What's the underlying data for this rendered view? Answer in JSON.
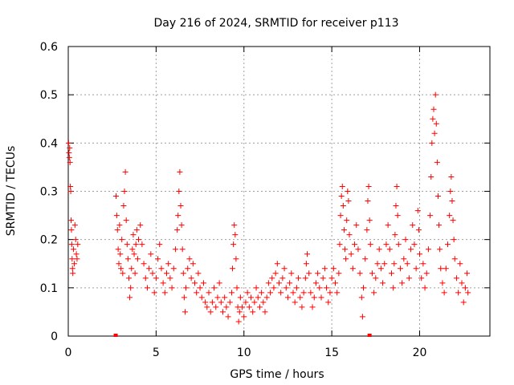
{
  "chart_data": {
    "type": "scatter",
    "title": "Day 216 of 2024, SRMTID for receiver p113",
    "xlabel": "GPS time / hours",
    "ylabel": "SRMTID / TECUs",
    "xlim": [
      0,
      24
    ],
    "ylim": [
      0,
      0.6
    ],
    "x_ticks": [
      0,
      5,
      10,
      15,
      20
    ],
    "y_ticks": [
      0,
      0.1,
      0.2,
      0.3,
      0.4,
      0.5,
      0.6
    ],
    "grid": true,
    "marker": "+",
    "series": [
      {
        "name": "SRMTID",
        "color": "#ff0000",
        "points": [
          [
            0.02,
            0.4
          ],
          [
            0.04,
            0.38
          ],
          [
            0.06,
            0.37
          ],
          [
            0.08,
            0.39
          ],
          [
            0.1,
            0.36
          ],
          [
            0.12,
            0.31
          ],
          [
            0.14,
            0.3
          ],
          [
            0.16,
            0.24
          ],
          [
            0.18,
            0.22
          ],
          [
            0.2,
            0.19
          ],
          [
            0.22,
            0.16
          ],
          [
            0.24,
            0.14
          ],
          [
            0.26,
            0.13
          ],
          [
            0.3,
            0.18
          ],
          [
            0.34,
            0.15
          ],
          [
            0.38,
            0.23
          ],
          [
            0.42,
            0.2
          ],
          [
            0.46,
            0.17
          ],
          [
            0.5,
            0.16
          ],
          [
            0.54,
            0.19
          ],
          [
            2.72,
            0.29
          ],
          [
            2.76,
            0.25
          ],
          [
            2.8,
            0.22
          ],
          [
            2.84,
            0.18
          ],
          [
            2.88,
            0.15
          ],
          [
            2.92,
            0.23
          ],
          [
            2.96,
            0.17
          ],
          [
            3.0,
            0.14
          ],
          [
            3.05,
            0.2
          ],
          [
            3.1,
            0.13
          ],
          [
            3.15,
            0.27
          ],
          [
            3.2,
            0.3
          ],
          [
            3.25,
            0.34
          ],
          [
            3.3,
            0.24
          ],
          [
            3.35,
            0.19
          ],
          [
            3.4,
            0.16
          ],
          [
            3.45,
            0.12
          ],
          [
            3.5,
            0.08
          ],
          [
            3.55,
            0.1
          ],
          [
            3.6,
            0.14
          ],
          [
            3.65,
            0.18
          ],
          [
            3.7,
            0.21
          ],
          [
            3.75,
            0.17
          ],
          [
            3.8,
            0.13
          ],
          [
            3.85,
            0.19
          ],
          [
            3.9,
            0.22
          ],
          [
            3.95,
            0.16
          ],
          [
            4.0,
            0.2
          ],
          [
            4.1,
            0.23
          ],
          [
            4.2,
            0.19
          ],
          [
            4.3,
            0.15
          ],
          [
            4.4,
            0.12
          ],
          [
            4.5,
            0.1
          ],
          [
            4.6,
            0.14
          ],
          [
            4.7,
            0.17
          ],
          [
            4.8,
            0.13
          ],
          [
            4.9,
            0.09
          ],
          [
            5.0,
            0.12
          ],
          [
            5.1,
            0.16
          ],
          [
            5.2,
            0.19
          ],
          [
            5.3,
            0.14
          ],
          [
            5.4,
            0.11
          ],
          [
            5.5,
            0.09
          ],
          [
            5.6,
            0.13
          ],
          [
            5.7,
            0.15
          ],
          [
            5.8,
            0.12
          ],
          [
            5.9,
            0.1
          ],
          [
            6.0,
            0.14
          ],
          [
            6.1,
            0.18
          ],
          [
            6.2,
            0.22
          ],
          [
            6.25,
            0.25
          ],
          [
            6.3,
            0.3
          ],
          [
            6.35,
            0.34
          ],
          [
            6.4,
            0.27
          ],
          [
            6.45,
            0.23
          ],
          [
            6.5,
            0.18
          ],
          [
            6.55,
            0.13
          ],
          [
            6.6,
            0.08
          ],
          [
            6.65,
            0.05
          ],
          [
            6.7,
            0.1
          ],
          [
            6.8,
            0.14
          ],
          [
            6.9,
            0.16
          ],
          [
            7.0,
            0.12
          ],
          [
            7.1,
            0.15
          ],
          [
            7.2,
            0.11
          ],
          [
            7.3,
            0.09
          ],
          [
            7.4,
            0.13
          ],
          [
            7.5,
            0.1
          ],
          [
            7.6,
            0.08
          ],
          [
            7.7,
            0.11
          ],
          [
            7.8,
            0.07
          ],
          [
            7.9,
            0.06
          ],
          [
            8.0,
            0.09
          ],
          [
            8.1,
            0.05
          ],
          [
            8.2,
            0.07
          ],
          [
            8.3,
            0.1
          ],
          [
            8.4,
            0.06
          ],
          [
            8.5,
            0.08
          ],
          [
            8.6,
            0.11
          ],
          [
            8.7,
            0.07
          ],
          [
            8.8,
            0.05
          ],
          [
            8.9,
            0.08
          ],
          [
            9.0,
            0.06
          ],
          [
            9.1,
            0.04
          ],
          [
            9.2,
            0.07
          ],
          [
            9.3,
            0.09
          ],
          [
            9.35,
            0.14
          ],
          [
            9.4,
            0.19
          ],
          [
            9.45,
            0.23
          ],
          [
            9.5,
            0.21
          ],
          [
            9.55,
            0.16
          ],
          [
            9.6,
            0.1
          ],
          [
            9.65,
            0.06
          ],
          [
            9.7,
            0.03
          ],
          [
            9.75,
            0.05
          ],
          [
            9.8,
            0.08
          ],
          [
            9.9,
            0.06
          ],
          [
            10.0,
            0.04
          ],
          [
            10.1,
            0.07
          ],
          [
            10.2,
            0.09
          ],
          [
            10.3,
            0.06
          ],
          [
            10.4,
            0.08
          ],
          [
            10.5,
            0.05
          ],
          [
            10.6,
            0.07
          ],
          [
            10.7,
            0.1
          ],
          [
            10.8,
            0.08
          ],
          [
            10.9,
            0.06
          ],
          [
            11.0,
            0.09
          ],
          [
            11.1,
            0.07
          ],
          [
            11.2,
            0.05
          ],
          [
            11.3,
            0.08
          ],
          [
            11.4,
            0.11
          ],
          [
            11.5,
            0.09
          ],
          [
            11.6,
            0.12
          ],
          [
            11.7,
            0.1
          ],
          [
            11.8,
            0.13
          ],
          [
            11.9,
            0.15
          ],
          [
            12.0,
            0.11
          ],
          [
            12.1,
            0.09
          ],
          [
            12.2,
            0.12
          ],
          [
            12.3,
            0.14
          ],
          [
            12.4,
            0.1
          ],
          [
            12.5,
            0.08
          ],
          [
            12.6,
            0.11
          ],
          [
            12.7,
            0.13
          ],
          [
            12.8,
            0.09
          ],
          [
            12.9,
            0.07
          ],
          [
            13.0,
            0.1
          ],
          [
            13.1,
            0.12
          ],
          [
            13.2,
            0.08
          ],
          [
            13.3,
            0.06
          ],
          [
            13.4,
            0.09
          ],
          [
            13.5,
            0.12
          ],
          [
            13.55,
            0.15
          ],
          [
            13.6,
            0.17
          ],
          [
            13.7,
            0.13
          ],
          [
            13.8,
            0.09
          ],
          [
            13.9,
            0.06
          ],
          [
            14.0,
            0.08
          ],
          [
            14.1,
            0.11
          ],
          [
            14.2,
            0.13
          ],
          [
            14.3,
            0.1
          ],
          [
            14.4,
            0.08
          ],
          [
            14.5,
            0.12
          ],
          [
            14.6,
            0.14
          ],
          [
            14.7,
            0.1
          ],
          [
            14.8,
            0.07
          ],
          [
            14.9,
            0.09
          ],
          [
            15.0,
            0.12
          ],
          [
            15.1,
            0.14
          ],
          [
            15.2,
            0.11
          ],
          [
            15.3,
            0.09
          ],
          [
            15.4,
            0.13
          ],
          [
            15.45,
            0.19
          ],
          [
            15.5,
            0.25
          ],
          [
            15.55,
            0.29
          ],
          [
            15.6,
            0.31
          ],
          [
            15.65,
            0.27
          ],
          [
            15.7,
            0.22
          ],
          [
            15.75,
            0.18
          ],
          [
            15.8,
            0.16
          ],
          [
            15.85,
            0.24
          ],
          [
            15.9,
            0.3
          ],
          [
            15.95,
            0.28
          ],
          [
            16.0,
            0.21
          ],
          [
            16.1,
            0.17
          ],
          [
            16.2,
            0.14
          ],
          [
            16.3,
            0.19
          ],
          [
            16.4,
            0.23
          ],
          [
            16.5,
            0.18
          ],
          [
            16.6,
            0.13
          ],
          [
            16.7,
            0.08
          ],
          [
            16.75,
            0.04
          ],
          [
            16.8,
            0.1
          ],
          [
            16.9,
            0.16
          ],
          [
            17.0,
            0.22
          ],
          [
            17.05,
            0.28
          ],
          [
            17.1,
            0.31
          ],
          [
            17.15,
            0.24
          ],
          [
            17.2,
            0.19
          ],
          [
            17.3,
            0.13
          ],
          [
            17.4,
            0.09
          ],
          [
            17.5,
            0.12
          ],
          [
            17.6,
            0.15
          ],
          [
            17.7,
            0.18
          ],
          [
            17.8,
            0.14
          ],
          [
            17.9,
            0.11
          ],
          [
            18.0,
            0.15
          ],
          [
            18.1,
            0.19
          ],
          [
            18.2,
            0.23
          ],
          [
            18.3,
            0.18
          ],
          [
            18.4,
            0.13
          ],
          [
            18.5,
            0.1
          ],
          [
            18.55,
            0.15
          ],
          [
            18.6,
            0.21
          ],
          [
            18.65,
            0.27
          ],
          [
            18.7,
            0.31
          ],
          [
            18.75,
            0.25
          ],
          [
            18.8,
            0.19
          ],
          [
            18.9,
            0.14
          ],
          [
            19.0,
            0.11
          ],
          [
            19.1,
            0.16
          ],
          [
            19.2,
            0.2
          ],
          [
            19.3,
            0.15
          ],
          [
            19.4,
            0.12
          ],
          [
            19.5,
            0.18
          ],
          [
            19.6,
            0.23
          ],
          [
            19.7,
            0.19
          ],
          [
            19.8,
            0.14
          ],
          [
            19.9,
            0.26
          ],
          [
            19.95,
            0.22
          ],
          [
            20.0,
            0.17
          ],
          [
            20.1,
            0.12
          ],
          [
            20.2,
            0.15
          ],
          [
            20.3,
            0.1
          ],
          [
            20.4,
            0.13
          ],
          [
            20.5,
            0.18
          ],
          [
            20.6,
            0.25
          ],
          [
            20.65,
            0.33
          ],
          [
            20.7,
            0.4
          ],
          [
            20.75,
            0.45
          ],
          [
            20.8,
            0.47
          ],
          [
            20.85,
            0.42
          ],
          [
            20.9,
            0.5
          ],
          [
            20.95,
            0.44
          ],
          [
            21.0,
            0.36
          ],
          [
            21.05,
            0.29
          ],
          [
            21.1,
            0.23
          ],
          [
            21.15,
            0.18
          ],
          [
            21.2,
            0.14
          ],
          [
            21.3,
            0.11
          ],
          [
            21.4,
            0.09
          ],
          [
            21.5,
            0.14
          ],
          [
            21.6,
            0.19
          ],
          [
            21.7,
            0.25
          ],
          [
            21.75,
            0.3
          ],
          [
            21.8,
            0.33
          ],
          [
            21.85,
            0.28
          ],
          [
            21.9,
            0.24
          ],
          [
            21.95,
            0.2
          ],
          [
            22.0,
            0.16
          ],
          [
            22.1,
            0.12
          ],
          [
            22.2,
            0.09
          ],
          [
            22.3,
            0.15
          ],
          [
            22.4,
            0.11
          ],
          [
            22.5,
            0.07
          ],
          [
            22.6,
            0.1
          ],
          [
            22.7,
            0.13
          ],
          [
            22.75,
            0.09
          ]
        ]
      }
    ],
    "zero_markers_x": [
      2.7,
      17.15
    ]
  }
}
